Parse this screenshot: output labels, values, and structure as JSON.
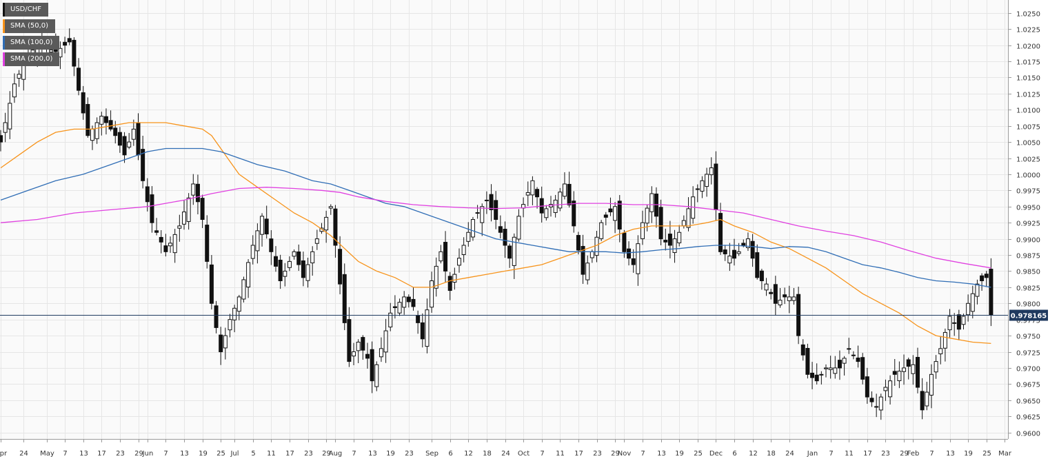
{
  "legend": [
    {
      "label": "USD/CHF",
      "color": "#111111"
    },
    {
      "label": "SMA (50,0)",
      "color": "#f7931a"
    },
    {
      "label": "SMA (100,0)",
      "color": "#2f6db5"
    },
    {
      "label": "SMA (200,0)",
      "color": "#e040e0"
    }
  ],
  "current_price": {
    "value": 0.978165,
    "label": "0.978165",
    "color": "#1f3a5f"
  },
  "chart_data": {
    "type": "candlestick",
    "title": "",
    "symbol": "USD/CHF",
    "grid": true,
    "legend_position": "top-left",
    "ylim": [
      0.959,
      1.027
    ],
    "xlim": [
      0,
      216
    ],
    "y_ticks": [
      "1.0250",
      "1.0225",
      "1.0200",
      "1.0175",
      "1.0150",
      "1.0125",
      "1.0100",
      "1.0075",
      "1.0050",
      "1.0025",
      "1.0000",
      "0.9975",
      "0.9950",
      "0.9925",
      "0.9900",
      "0.9875",
      "0.9850",
      "0.9825",
      "0.9800",
      "0.9775",
      "0.9750",
      "0.9725",
      "0.9700",
      "0.9675",
      "0.9650",
      "0.9625",
      "0.9600"
    ],
    "x_ticks": [
      {
        "label": "Apr",
        "i": 0
      },
      {
        "label": "24",
        "i": 5
      },
      {
        "label": "May",
        "i": 10
      },
      {
        "label": "7",
        "i": 14
      },
      {
        "label": "13",
        "i": 18
      },
      {
        "label": "17",
        "i": 22
      },
      {
        "label": "23",
        "i": 26
      },
      {
        "label": "29",
        "i": 30
      },
      {
        "label": "Jun",
        "i": 32
      },
      {
        "label": "7",
        "i": 36
      },
      {
        "label": "13",
        "i": 40
      },
      {
        "label": "19",
        "i": 44
      },
      {
        "label": "25",
        "i": 48
      },
      {
        "label": "Jul",
        "i": 51
      },
      {
        "label": "5",
        "i": 55
      },
      {
        "label": "11",
        "i": 59
      },
      {
        "label": "17",
        "i": 63
      },
      {
        "label": "23",
        "i": 67
      },
      {
        "label": "29",
        "i": 71
      },
      {
        "label": "Aug",
        "i": 73
      },
      {
        "label": "7",
        "i": 77
      },
      {
        "label": "13",
        "i": 81
      },
      {
        "label": "19",
        "i": 85
      },
      {
        "label": "23",
        "i": 89
      },
      {
        "label": "Sep",
        "i": 94
      },
      {
        "label": "6",
        "i": 98
      },
      {
        "label": "12",
        "i": 102
      },
      {
        "label": "18",
        "i": 106
      },
      {
        "label": "24",
        "i": 110
      },
      {
        "label": "Oct",
        "i": 114
      },
      {
        "label": "7",
        "i": 118
      },
      {
        "label": "11",
        "i": 122
      },
      {
        "label": "17",
        "i": 126
      },
      {
        "label": "23",
        "i": 130
      },
      {
        "label": "29",
        "i": 134
      },
      {
        "label": "Nov",
        "i": 136
      },
      {
        "label": "7",
        "i": 140
      },
      {
        "label": "13",
        "i": 144
      },
      {
        "label": "19",
        "i": 148
      },
      {
        "label": "25",
        "i": 152
      },
      {
        "label": "Dec",
        "i": 156
      },
      {
        "label": "6",
        "i": 160
      },
      {
        "label": "12",
        "i": 164
      },
      {
        "label": "18",
        "i": 168
      },
      {
        "label": "24",
        "i": 172
      },
      {
        "label": "Jan",
        "i": 177
      },
      {
        "label": "7",
        "i": 181
      },
      {
        "label": "11",
        "i": 185
      },
      {
        "label": "17",
        "i": 189
      },
      {
        "label": "23",
        "i": 193
      },
      {
        "label": "29",
        "i": 197
      },
      {
        "label": "Feb",
        "i": 199
      },
      {
        "label": "7",
        "i": 203
      },
      {
        "label": "13",
        "i": 207
      },
      {
        "label": "19",
        "i": 211
      },
      {
        "label": "25",
        "i": 215
      },
      {
        "label": "Mar",
        "i": 219
      }
    ],
    "close_anchors": [
      [
        0,
        1.005
      ],
      [
        3,
        1.014
      ],
      [
        6,
        1.0185
      ],
      [
        8,
        1.02
      ],
      [
        12,
        1.019
      ],
      [
        15,
        1.0205
      ],
      [
        17,
        1.013
      ],
      [
        19,
        1.006
      ],
      [
        22,
        1.009
      ],
      [
        25,
        1.006
      ],
      [
        27,
        1.003
      ],
      [
        29,
        1.007
      ],
      [
        31,
        0.999
      ],
      [
        33,
        0.9925
      ],
      [
        36,
        0.988
      ],
      [
        39,
        0.992
      ],
      [
        42,
        0.9985
      ],
      [
        44,
        0.993
      ],
      [
        46,
        0.98
      ],
      [
        48,
        0.9725
      ],
      [
        50,
        0.9775
      ],
      [
        52,
        0.981
      ],
      [
        55,
        0.989
      ],
      [
        57,
        0.9935
      ],
      [
        59,
        0.988
      ],
      [
        61,
        0.9835
      ],
      [
        64,
        0.988
      ],
      [
        66,
        0.984
      ],
      [
        69,
        0.99
      ],
      [
        72,
        0.995
      ],
      [
        74,
        0.983
      ],
      [
        76,
        0.971
      ],
      [
        78,
        0.974
      ],
      [
        80,
        0.9715
      ],
      [
        81,
        0.968
      ],
      [
        83,
        0.973
      ],
      [
        85,
        0.9785
      ],
      [
        88,
        0.981
      ],
      [
        90,
        0.9795
      ],
      [
        92,
        0.9745
      ],
      [
        94,
        0.9835
      ],
      [
        96,
        0.988
      ],
      [
        98,
        0.982
      ],
      [
        100,
        0.987
      ],
      [
        103,
        0.993
      ],
      [
        106,
        0.996
      ],
      [
        108,
        0.993
      ],
      [
        111,
        0.987
      ],
      [
        113,
        0.9935
      ],
      [
        116,
        0.999
      ],
      [
        118,
        0.994
      ],
      [
        121,
        0.996
      ],
      [
        123,
        0.9985
      ],
      [
        125,
        0.992
      ],
      [
        127,
        0.9845
      ],
      [
        129,
        0.988
      ],
      [
        131,
        0.9925
      ],
      [
        134,
        0.995
      ],
      [
        136,
        0.988
      ],
      [
        138,
        0.986
      ],
      [
        140,
        0.9925
      ],
      [
        142,
        0.997
      ],
      [
        144,
        0.99
      ],
      [
        146,
        0.989
      ],
      [
        148,
        0.991
      ],
      [
        151,
        0.9965
      ],
      [
        153,
        0.999
      ],
      [
        155,
        1.001
      ],
      [
        157,
        0.988
      ],
      [
        160,
        0.987
      ],
      [
        163,
        0.99
      ],
      [
        165,
        0.984
      ],
      [
        167,
        0.983
      ],
      [
        169,
        0.98
      ],
      [
        171,
        0.981
      ],
      [
        173,
        0.981
      ],
      [
        174,
        0.975
      ],
      [
        176,
        0.969
      ],
      [
        178,
        0.968
      ],
      [
        180,
        0.97
      ],
      [
        183,
        0.97
      ],
      [
        185,
        0.973
      ],
      [
        187,
        0.971
      ],
      [
        189,
        0.9655
      ],
      [
        191,
        0.964
      ],
      [
        193,
        0.967
      ],
      [
        195,
        0.969
      ],
      [
        197,
        0.97
      ],
      [
        199,
        0.9705
      ],
      [
        201,
        0.9635
      ],
      [
        203,
        0.969
      ],
      [
        205,
        0.973
      ],
      [
        207,
        0.978
      ],
      [
        209,
        0.976
      ],
      [
        211,
        0.98
      ],
      [
        213,
        0.983
      ],
      [
        215,
        0.984
      ],
      [
        216,
        0.9782
      ]
    ],
    "series": [
      {
        "name": "SMA (50,0)",
        "color": "#f7931a",
        "points": [
          [
            0,
            1.001
          ],
          [
            4,
            1.003
          ],
          [
            8,
            1.005
          ],
          [
            12,
            1.0065
          ],
          [
            16,
            1.007
          ],
          [
            20,
            1.007
          ],
          [
            24,
            1.0075
          ],
          [
            28,
            1.008
          ],
          [
            32,
            1.008
          ],
          [
            36,
            1.008
          ],
          [
            40,
            1.0075
          ],
          [
            44,
            1.007
          ],
          [
            46,
            1.006
          ],
          [
            48,
            1.004
          ],
          [
            50,
            1.002
          ],
          [
            52,
            1.0
          ],
          [
            56,
            0.998
          ],
          [
            60,
            0.996
          ],
          [
            64,
            0.994
          ],
          [
            68,
            0.9925
          ],
          [
            72,
            0.9905
          ],
          [
            75,
            0.9885
          ],
          [
            78,
            0.9865
          ],
          [
            82,
            0.985
          ],
          [
            86,
            0.984
          ],
          [
            90,
            0.9825
          ],
          [
            94,
            0.9825
          ],
          [
            98,
            0.9835
          ],
          [
            102,
            0.984
          ],
          [
            106,
            0.9845
          ],
          [
            110,
            0.985
          ],
          [
            114,
            0.9855
          ],
          [
            118,
            0.986
          ],
          [
            122,
            0.987
          ],
          [
            126,
            0.988
          ],
          [
            130,
            0.989
          ],
          [
            134,
            0.9905
          ],
          [
            138,
            0.9915
          ],
          [
            142,
            0.992
          ],
          [
            146,
            0.992
          ],
          [
            150,
            0.992
          ],
          [
            154,
            0.9925
          ],
          [
            157,
            0.993
          ],
          [
            160,
            0.992
          ],
          [
            164,
            0.991
          ],
          [
            168,
            0.9895
          ],
          [
            172,
            0.9885
          ],
          [
            176,
            0.987
          ],
          [
            180,
            0.9855
          ],
          [
            184,
            0.9835
          ],
          [
            188,
            0.9815
          ],
          [
            192,
            0.98
          ],
          [
            196,
            0.9785
          ],
          [
            200,
            0.9765
          ],
          [
            204,
            0.975
          ],
          [
            208,
            0.9745
          ],
          [
            212,
            0.974
          ],
          [
            216,
            0.9738
          ]
        ]
      },
      {
        "name": "SMA (100,0)",
        "color": "#2f6db5",
        "points": [
          [
            0,
            0.996
          ],
          [
            6,
            0.9975
          ],
          [
            12,
            0.999
          ],
          [
            18,
            1.0
          ],
          [
            24,
            1.0015
          ],
          [
            28,
            1.0025
          ],
          [
            32,
            1.0035
          ],
          [
            36,
            1.004
          ],
          [
            40,
            1.004
          ],
          [
            44,
            1.004
          ],
          [
            48,
            1.0035
          ],
          [
            52,
            1.0025
          ],
          [
            56,
            1.0015
          ],
          [
            62,
            1.0005
          ],
          [
            68,
            0.999
          ],
          [
            72,
            0.9985
          ],
          [
            76,
            0.9975
          ],
          [
            80,
            0.9965
          ],
          [
            84,
            0.9955
          ],
          [
            88,
            0.995
          ],
          [
            92,
            0.994
          ],
          [
            96,
            0.993
          ],
          [
            100,
            0.992
          ],
          [
            104,
            0.991
          ],
          [
            108,
            0.99
          ],
          [
            112,
            0.9895
          ],
          [
            116,
            0.989
          ],
          [
            120,
            0.9885
          ],
          [
            124,
            0.988
          ],
          [
            128,
            0.988
          ],
          [
            132,
            0.988
          ],
          [
            136,
            0.9878
          ],
          [
            140,
            0.988
          ],
          [
            144,
            0.9883
          ],
          [
            148,
            0.9885
          ],
          [
            152,
            0.9888
          ],
          [
            156,
            0.989
          ],
          [
            160,
            0.989
          ],
          [
            164,
            0.9888
          ],
          [
            168,
            0.9885
          ],
          [
            172,
            0.9888
          ],
          [
            176,
            0.9887
          ],
          [
            180,
            0.988
          ],
          [
            184,
            0.987
          ],
          [
            188,
            0.986
          ],
          [
            192,
            0.9855
          ],
          [
            196,
            0.9848
          ],
          [
            200,
            0.984
          ],
          [
            204,
            0.9835
          ],
          [
            208,
            0.9833
          ],
          [
            212,
            0.983
          ],
          [
            216,
            0.9825
          ]
        ]
      },
      {
        "name": "SMA (200,0)",
        "color": "#e040e0",
        "points": [
          [
            0,
            0.9925
          ],
          [
            8,
            0.993
          ],
          [
            16,
            0.994
          ],
          [
            24,
            0.9945
          ],
          [
            32,
            0.995
          ],
          [
            40,
            0.996
          ],
          [
            46,
            0.997
          ],
          [
            52,
            0.9978
          ],
          [
            58,
            0.998
          ],
          [
            64,
            0.9978
          ],
          [
            70,
            0.9975
          ],
          [
            74,
            0.9972
          ],
          [
            78,
            0.9965
          ],
          [
            84,
            0.9958
          ],
          [
            90,
            0.9953
          ],
          [
            96,
            0.995
          ],
          [
            102,
            0.9948
          ],
          [
            108,
            0.9947
          ],
          [
            114,
            0.9948
          ],
          [
            120,
            0.9952
          ],
          [
            126,
            0.9955
          ],
          [
            132,
            0.9955
          ],
          [
            138,
            0.9953
          ],
          [
            144,
            0.9953
          ],
          [
            150,
            0.995
          ],
          [
            156,
            0.9945
          ],
          [
            162,
            0.994
          ],
          [
            168,
            0.993
          ],
          [
            174,
            0.992
          ],
          [
            180,
            0.9912
          ],
          [
            186,
            0.9905
          ],
          [
            192,
            0.9895
          ],
          [
            198,
            0.9882
          ],
          [
            204,
            0.987
          ],
          [
            210,
            0.9862
          ],
          [
            216,
            0.9855
          ]
        ]
      }
    ]
  }
}
